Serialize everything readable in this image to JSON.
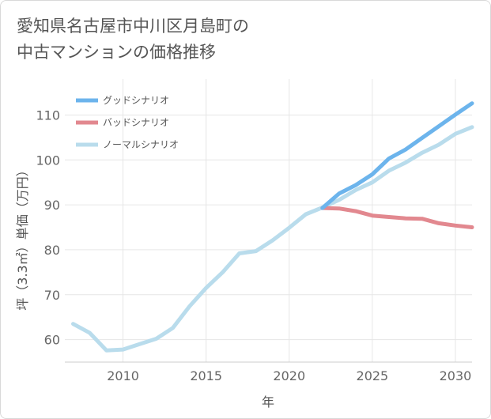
{
  "title_line1": "愛知県名古屋市中川区月島町の",
  "title_line2": "中古マンションの価格推移",
  "chart_data": {
    "type": "line",
    "title": "愛知県名古屋市中川区月島町の中古マンションの価格推移",
    "xlabel": "年",
    "ylabel": "坪（3.3㎡）単価（万円）",
    "xlim": [
      2006.5,
      2031
    ],
    "ylim": [
      55,
      118
    ],
    "xticks": [
      2010,
      2015,
      2020,
      2025,
      2030
    ],
    "yticks": [
      60,
      70,
      80,
      90,
      100,
      110
    ],
    "grid": true,
    "legend_position": "top-left",
    "series": [
      {
        "name": "グッドシナリオ",
        "color": "#6cb4ec",
        "x": [
          2022,
          2023,
          2024,
          2025,
          2026,
          2027,
          2028,
          2029,
          2030,
          2031
        ],
        "y": [
          89.3,
          92.5,
          94.4,
          96.8,
          100.3,
          102.3,
          104.9,
          107.5,
          110.1,
          112.6
        ]
      },
      {
        "name": "バッドシナリオ",
        "color": "#e2888f",
        "x": [
          2022,
          2023,
          2024,
          2025,
          2026,
          2027,
          2028,
          2029,
          2030,
          2031
        ],
        "y": [
          89.3,
          89.2,
          88.6,
          87.6,
          87.3,
          87.0,
          86.9,
          85.9,
          85.4,
          85.0
        ]
      },
      {
        "name": "ノーマルシナリオ",
        "color": "#b9dcec",
        "x": [
          2007,
          2008,
          2009,
          2010,
          2011,
          2012,
          2013,
          2014,
          2015,
          2016,
          2017,
          2018,
          2019,
          2020,
          2021,
          2022,
          2023,
          2024,
          2025,
          2026,
          2027,
          2028,
          2029,
          2030,
          2031
        ],
        "y": [
          63.5,
          61.5,
          57.6,
          57.8,
          59.0,
          60.2,
          62.6,
          67.4,
          71.5,
          75.0,
          79.2,
          79.7,
          82.1,
          84.9,
          87.9,
          89.4,
          91.1,
          93.3,
          95.0,
          97.6,
          99.4,
          101.6,
          103.4,
          105.8,
          107.3
        ]
      }
    ]
  }
}
